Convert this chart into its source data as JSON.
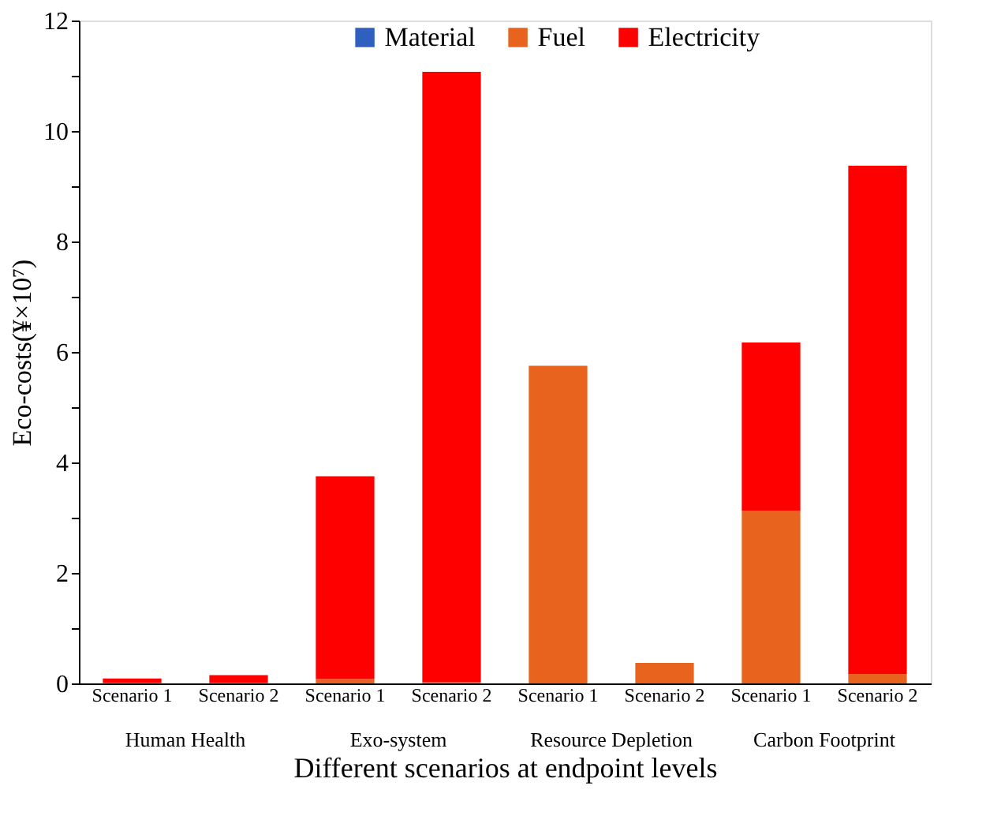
{
  "chart_data": {
    "type": "bar",
    "stacked": true,
    "categories": [
      "Scenario 1",
      "Scenario 2",
      "Scenario 1",
      "Scenario 2",
      "Scenario 1",
      "Scenario 2",
      "Scenario 1",
      "Scenario 2"
    ],
    "series": [
      {
        "name": "Material",
        "color": "#2f5fbf",
        "values": [
          0,
          0,
          0,
          0,
          0,
          0,
          0,
          0
        ]
      },
      {
        "name": "Fuel",
        "color": "#e8641e",
        "values": [
          0.01,
          0.01,
          0.08,
          0.02,
          5.75,
          0.37,
          3.12,
          0.17
        ]
      },
      {
        "name": "Electricity",
        "color": "#ff0000",
        "values": [
          0.08,
          0.14,
          3.67,
          11.05,
          0,
          0,
          3.05,
          9.2
        ]
      }
    ],
    "ylabel": "Eco-costs(¥×10⁷)",
    "xlabel": "Different scenarios at endpoint levels",
    "annotations": [
      "Human Health",
      "Exo-system",
      "Resource Depletion",
      "Carbon Footprint"
    ],
    "ylim": [
      0,
      12
    ],
    "yticks": [
      0,
      {
        "value": 1,
        "label": null
      },
      2,
      {
        "value": 3,
        "label": null
      },
      4,
      {
        "value": 5,
        "label": null
      },
      6,
      {
        "value": 7,
        "label": null
      },
      8,
      {
        "value": 9,
        "label": null
      },
      10,
      {
        "value": 11,
        "label": null
      },
      12
    ],
    "grid": false,
    "legend": "top"
  }
}
